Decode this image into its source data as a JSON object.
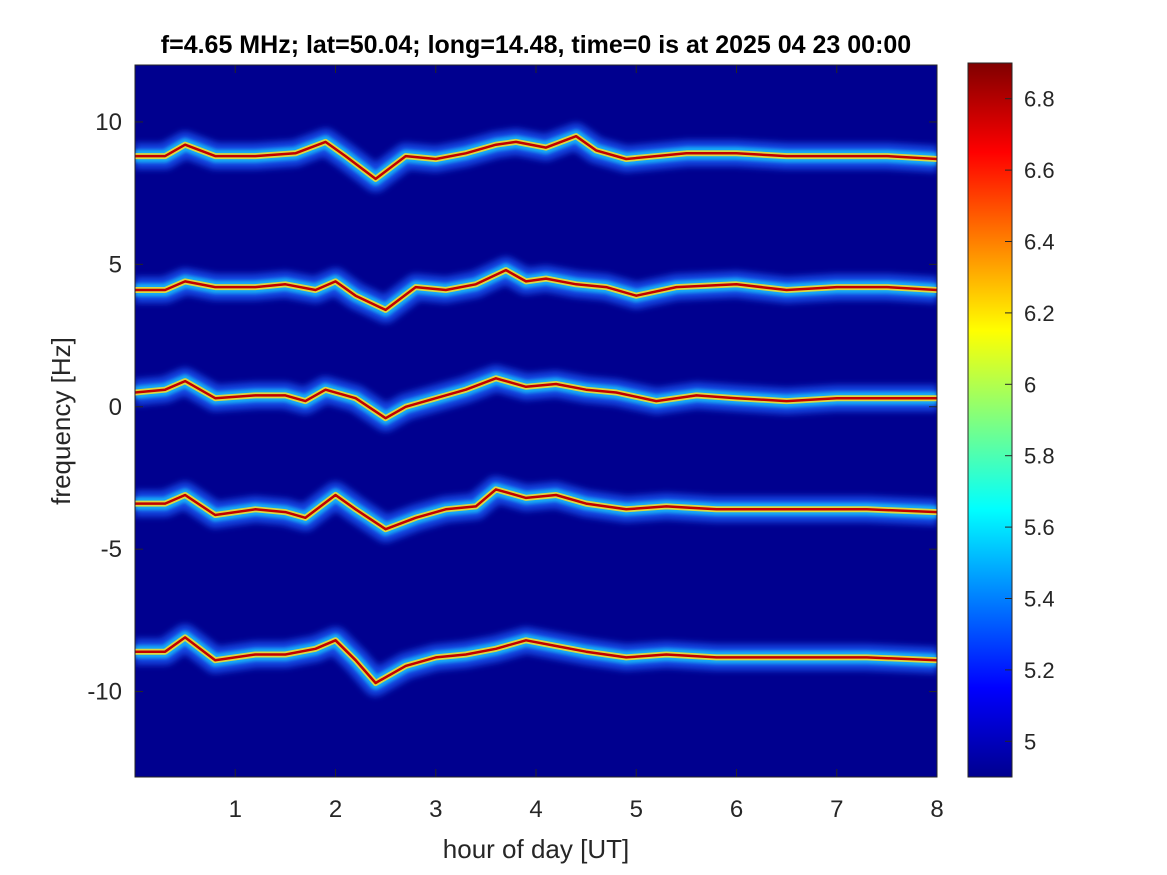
{
  "chart_data": {
    "type": "heatmap",
    "title": "f=4.65 MHz;  lat=50.04; long=14.48, time=0 is at 2025 04 23 00:00",
    "xlabel": "hour of day [UT]",
    "ylabel": "frequency [Hz]",
    "xlim": [
      0,
      8
    ],
    "ylim": [
      -13,
      12
    ],
    "x_ticks": [
      1,
      2,
      3,
      4,
      5,
      6,
      7,
      8
    ],
    "x_tick_labels": [
      "1",
      "2",
      "3",
      "4",
      "5",
      "6",
      "7",
      "8"
    ],
    "y_ticks": [
      10,
      5,
      0,
      -5,
      -10
    ],
    "y_tick_labels": [
      "10",
      "5",
      "0",
      "-5",
      "-10"
    ],
    "colormap": "jet",
    "clim": [
      4.9,
      6.9
    ],
    "colorbar_ticks": [
      6.8,
      6.6,
      6.4,
      6.2,
      6,
      5.8,
      5.6,
      5.4,
      5.2,
      5
    ],
    "colorbar_tick_labels": [
      "6.8",
      "6.6",
      "6.4",
      "6.2",
      "6",
      "5.8",
      "5.6",
      "5.4",
      "5.2",
      "5"
    ],
    "background_color": "#00008f",
    "series": [
      {
        "x": [
          0,
          0.3,
          0.5,
          0.8,
          1.2,
          1.6,
          1.9,
          2.1,
          2.4,
          2.7,
          3.0,
          3.3,
          3.6,
          3.8,
          4.1,
          4.4,
          4.6,
          4.9,
          5.5,
          6.0,
          6.5,
          7.0,
          7.5,
          8.0
        ],
        "y": [
          8.8,
          8.8,
          9.2,
          8.8,
          8.8,
          8.9,
          9.3,
          8.8,
          8.0,
          8.8,
          8.7,
          8.9,
          9.2,
          9.3,
          9.1,
          9.5,
          9.0,
          8.7,
          8.9,
          8.9,
          8.8,
          8.8,
          8.8,
          8.7
        ]
      },
      {
        "x": [
          0,
          0.3,
          0.5,
          0.8,
          1.2,
          1.5,
          1.8,
          2.0,
          2.2,
          2.5,
          2.8,
          3.1,
          3.4,
          3.7,
          3.9,
          4.1,
          4.4,
          4.7,
          5.0,
          5.4,
          6.0,
          6.5,
          7.0,
          7.5,
          8.0
        ],
        "y": [
          4.1,
          4.1,
          4.4,
          4.2,
          4.2,
          4.3,
          4.1,
          4.4,
          3.9,
          3.4,
          4.2,
          4.1,
          4.3,
          4.8,
          4.4,
          4.5,
          4.3,
          4.2,
          3.9,
          4.2,
          4.3,
          4.1,
          4.2,
          4.2,
          4.1
        ]
      },
      {
        "x": [
          0,
          0.3,
          0.5,
          0.8,
          1.2,
          1.5,
          1.7,
          1.9,
          2.2,
          2.5,
          2.7,
          3.0,
          3.3,
          3.6,
          3.9,
          4.2,
          4.5,
          4.8,
          5.2,
          5.6,
          6.0,
          6.5,
          7.0,
          7.5,
          8.0
        ],
        "y": [
          0.5,
          0.6,
          0.9,
          0.3,
          0.4,
          0.4,
          0.2,
          0.6,
          0.3,
          -0.4,
          0.0,
          0.3,
          0.6,
          1.0,
          0.7,
          0.8,
          0.6,
          0.5,
          0.2,
          0.4,
          0.3,
          0.2,
          0.3,
          0.3,
          0.3
        ]
      },
      {
        "x": [
          0,
          0.3,
          0.5,
          0.8,
          1.2,
          1.5,
          1.7,
          2.0,
          2.2,
          2.5,
          2.8,
          3.1,
          3.4,
          3.6,
          3.9,
          4.2,
          4.5,
          4.9,
          5.3,
          5.8,
          6.3,
          6.8,
          7.3,
          8.0
        ],
        "y": [
          -3.4,
          -3.4,
          -3.1,
          -3.8,
          -3.6,
          -3.7,
          -3.9,
          -3.1,
          -3.6,
          -4.3,
          -3.9,
          -3.6,
          -3.5,
          -2.9,
          -3.2,
          -3.1,
          -3.4,
          -3.6,
          -3.5,
          -3.6,
          -3.6,
          -3.6,
          -3.6,
          -3.7
        ]
      },
      {
        "x": [
          0,
          0.3,
          0.5,
          0.8,
          1.2,
          1.5,
          1.8,
          2.0,
          2.2,
          2.4,
          2.7,
          3.0,
          3.3,
          3.6,
          3.9,
          4.2,
          4.5,
          4.9,
          5.3,
          5.8,
          6.3,
          6.8,
          7.3,
          8.0
        ],
        "y": [
          -8.6,
          -8.6,
          -8.1,
          -8.9,
          -8.7,
          -8.7,
          -8.5,
          -8.2,
          -8.9,
          -9.7,
          -9.1,
          -8.8,
          -8.7,
          -8.5,
          -8.2,
          -8.4,
          -8.6,
          -8.8,
          -8.7,
          -8.8,
          -8.8,
          -8.8,
          -8.8,
          -8.9
        ]
      }
    ]
  }
}
